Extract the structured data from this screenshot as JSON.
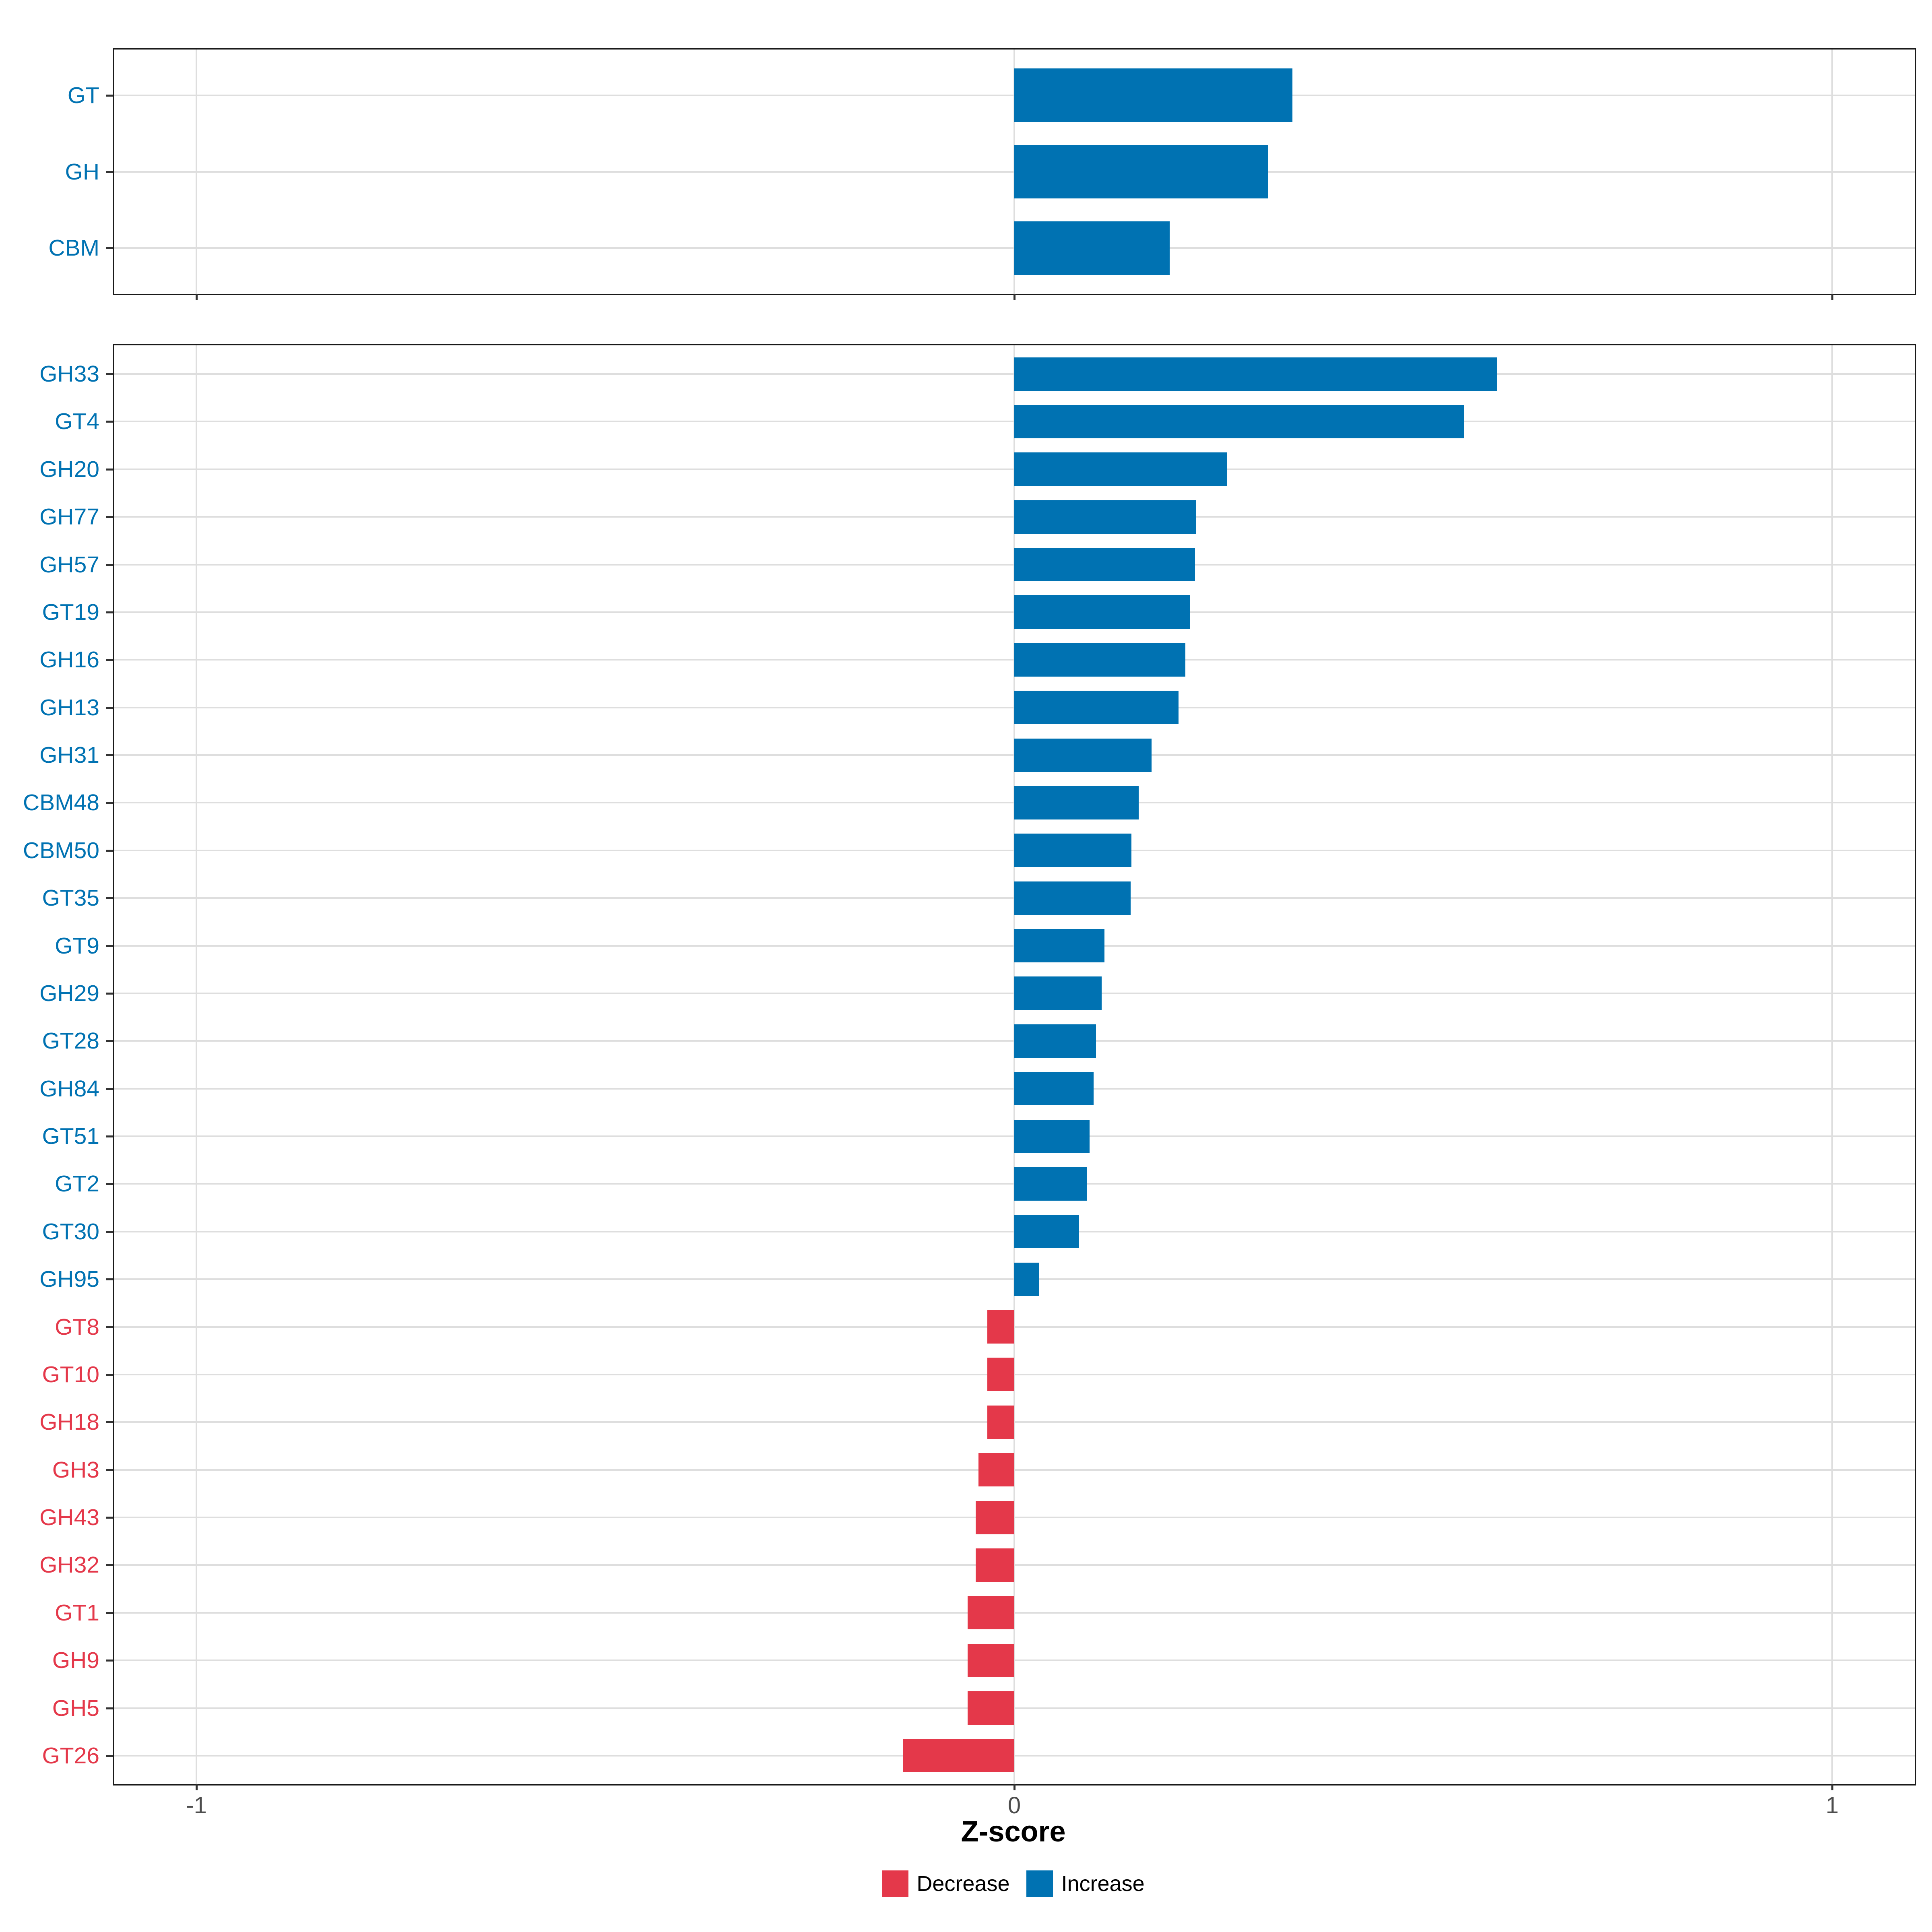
{
  "chart_data": {
    "type": "bar",
    "orientation": "horizontal",
    "xlabel": "Z-score",
    "xlim": [
      -1.1,
      1.1
    ],
    "x_ticks": [
      -1,
      0,
      1
    ],
    "x_tick_labels": [
      "-1",
      "0",
      "1"
    ],
    "grid": "on",
    "legend_position": "bottom",
    "legend": [
      {
        "key": "decrease",
        "label": "Decrease",
        "color": "#e4384a"
      },
      {
        "key": "increase",
        "label": "Increase",
        "color": "#0072b2"
      }
    ],
    "colors": {
      "increase": "#0072b2",
      "decrease": "#e4384a",
      "grid": "#dedede",
      "axis_text": "#4d4d4d",
      "panel_border": "#1a1a1a"
    },
    "panels": [
      {
        "name": "cazyme-classes",
        "categories": [
          "GT",
          "GH",
          "CBM"
        ],
        "series": [
          {
            "name": "Z-score",
            "values": [
              0.34,
              0.31,
              0.19
            ]
          }
        ]
      },
      {
        "name": "cazyme-families",
        "categories": [
          "GH33",
          "GT4",
          "GH20",
          "GH77",
          "GH57",
          "GT19",
          "GH16",
          "GH13",
          "GH31",
          "CBM48",
          "CBM50",
          "GT35",
          "GT9",
          "GH29",
          "GT28",
          "GH84",
          "GT51",
          "GT2",
          "GT30",
          "GH95",
          "GT8",
          "GT10",
          "GH18",
          "GH3",
          "GH43",
          "GH32",
          "GT1",
          "GH9",
          "GH5",
          "GT26"
        ],
        "series": [
          {
            "name": "Z-score",
            "values": [
              0.59,
              0.55,
              0.26,
              0.222,
              0.221,
              0.215,
              0.209,
              0.201,
              0.168,
              0.152,
              0.143,
              0.142,
              0.11,
              0.107,
              0.1,
              0.097,
              0.092,
              0.089,
              0.079,
              0.03,
              -0.033,
              -0.033,
              -0.033,
              -0.044,
              -0.047,
              -0.047,
              -0.057,
              -0.057,
              -0.057,
              -0.136
            ]
          }
        ]
      }
    ]
  }
}
